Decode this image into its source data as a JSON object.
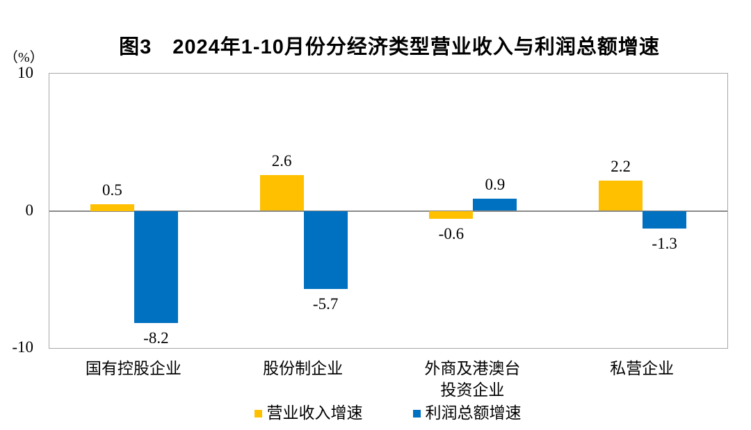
{
  "chart_data": {
    "type": "bar",
    "title": "图3　2024年1-10月份分经济类型营业收入与利润总额增速",
    "unit_label": "（%）",
    "categories": [
      "国有控股企业",
      "股份制企业",
      "外商及港澳台\n投资企业",
      "私营企业"
    ],
    "series": [
      {
        "key": "operating-revenue-growth",
        "name": "营业收入增速",
        "color": "#FFC000",
        "values": [
          0.5,
          2.6,
          -0.6,
          2.2
        ]
      },
      {
        "key": "total-profit-growth",
        "name": "利润总额增速",
        "color": "#0070C0",
        "values": [
          -8.2,
          -5.7,
          0.9,
          -1.3
        ]
      }
    ],
    "ylim": [
      -10,
      10
    ],
    "yticks": [
      10,
      0,
      -10
    ],
    "grid": false,
    "legend_position": "bottom",
    "value_labels_shown": true,
    "axis_colors": {
      "plot_border": "#A6A6A6",
      "zero_line": "#898989"
    }
  }
}
